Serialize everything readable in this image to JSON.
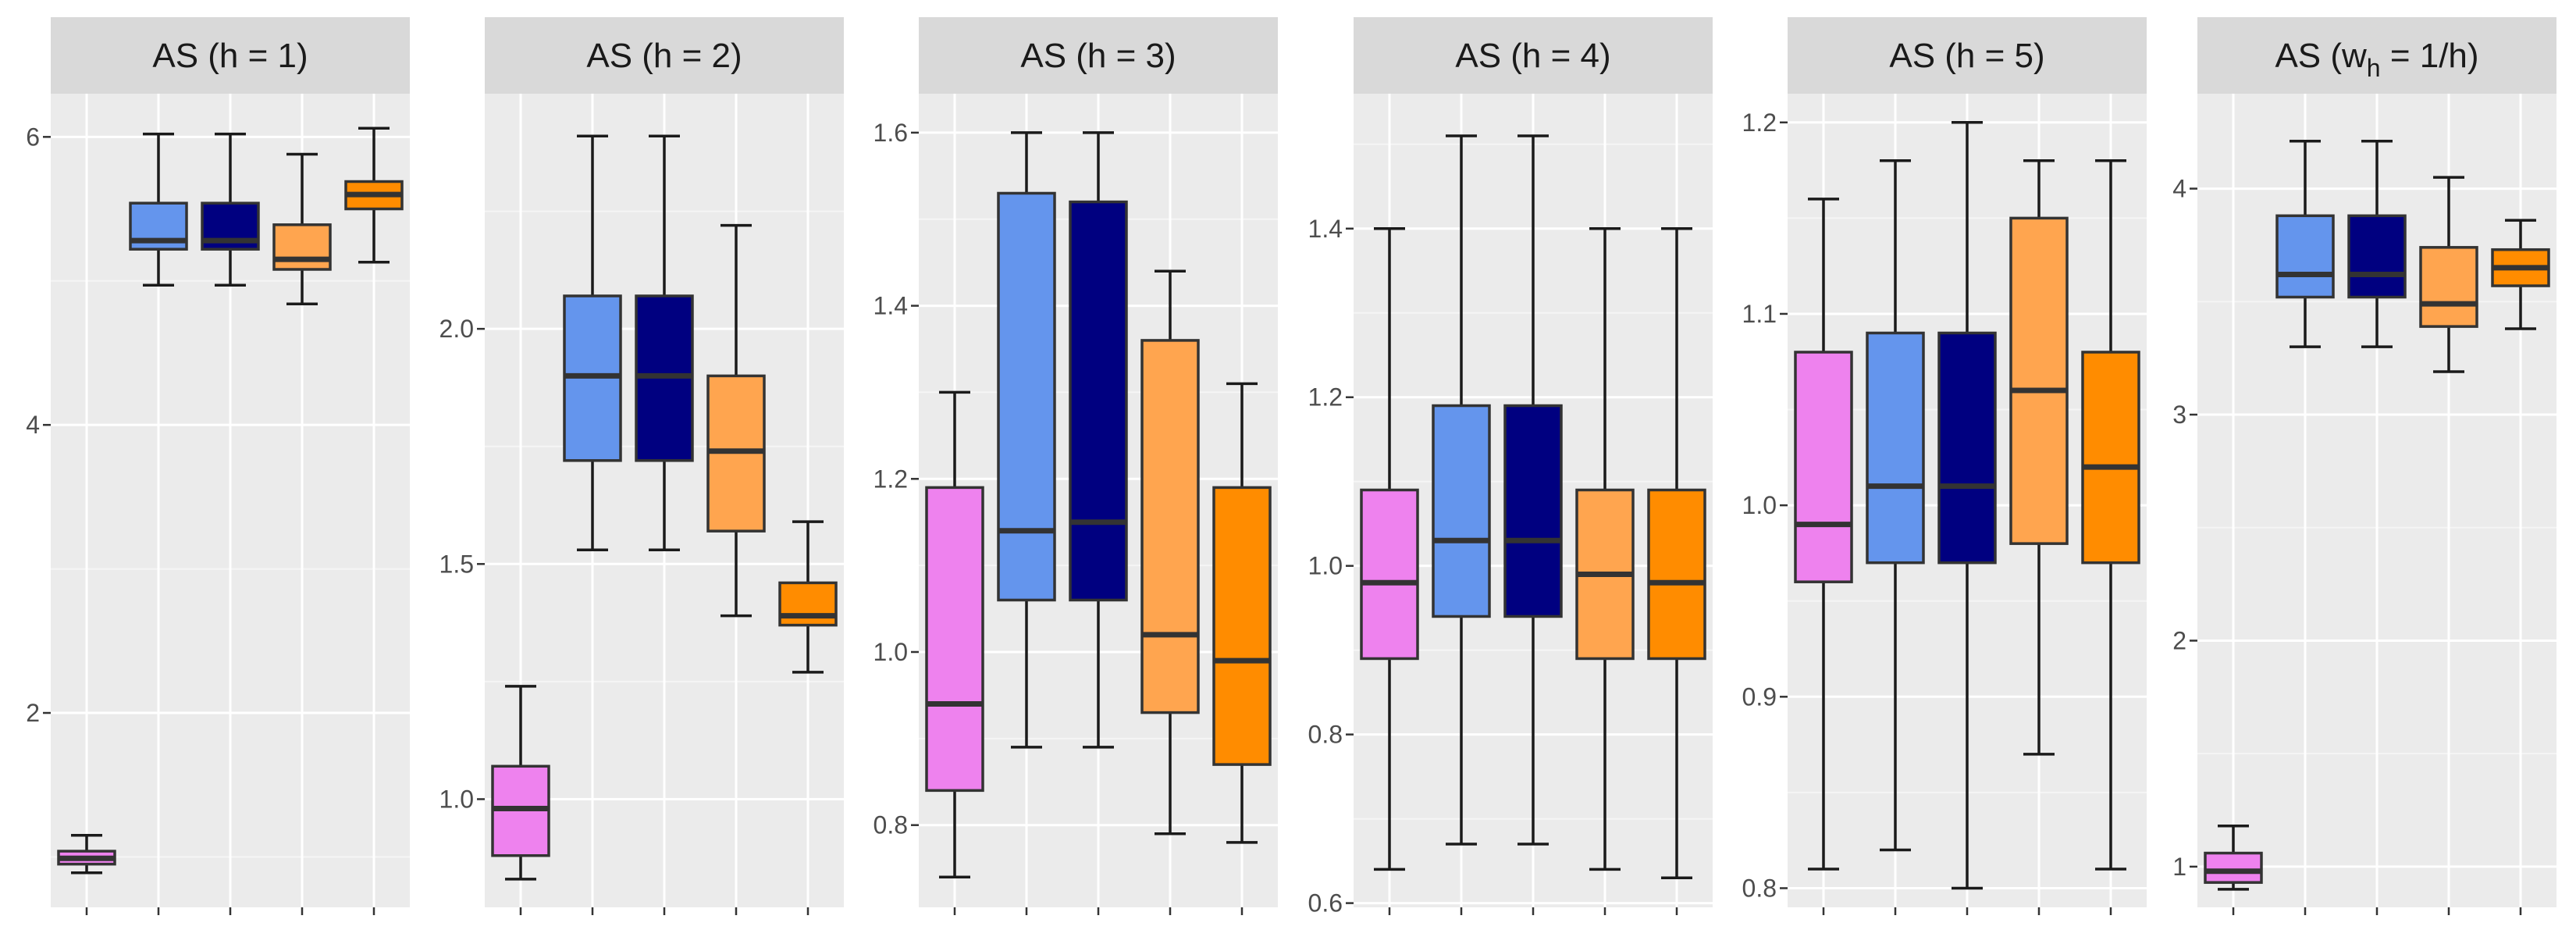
{
  "colors": {
    "panel_bg": "#EBEBEB",
    "strip_bg": "#D9D9D9",
    "grid_major": "#FFFFFF",
    "grid_minor": "#F5F5F5",
    "tick": "#333333",
    "whisker": "#1A1A1A",
    "box_border": "#333333",
    "series": [
      "#EE82EE",
      "#6495ED",
      "#000080",
      "#FFA54F",
      "#FF8C00"
    ]
  },
  "chart_data": [
    {
      "type": "box",
      "title": "AS (h = 1)",
      "ylim": [
        0.65,
        6.3
      ],
      "yticks": [
        2,
        4,
        6
      ],
      "yticklabels": [
        "2",
        "4",
        "6"
      ],
      "boxes": [
        {
          "min": 0.89,
          "q1": 0.95,
          "median": 0.99,
          "q3": 1.04,
          "max": 1.15
        },
        {
          "min": 4.97,
          "q1": 5.22,
          "median": 5.28,
          "q3": 5.54,
          "max": 6.02
        },
        {
          "min": 4.97,
          "q1": 5.22,
          "median": 5.28,
          "q3": 5.54,
          "max": 6.02
        },
        {
          "min": 4.84,
          "q1": 5.08,
          "median": 5.15,
          "q3": 5.39,
          "max": 5.88
        },
        {
          "min": 5.13,
          "q1": 5.5,
          "median": 5.6,
          "q3": 5.69,
          "max": 6.06
        }
      ]
    },
    {
      "type": "box",
      "title": "AS (h = 2)",
      "ylim": [
        0.77,
        2.5
      ],
      "yticks": [
        1.0,
        1.5,
        2.0
      ],
      "yticklabels": [
        "1.0",
        "1.5",
        "2.0"
      ],
      "boxes": [
        {
          "min": 0.83,
          "q1": 0.88,
          "median": 0.98,
          "q3": 1.07,
          "max": 1.24
        },
        {
          "min": 1.53,
          "q1": 1.72,
          "median": 1.9,
          "q3": 2.07,
          "max": 2.41
        },
        {
          "min": 1.53,
          "q1": 1.72,
          "median": 1.9,
          "q3": 2.07,
          "max": 2.41
        },
        {
          "min": 1.39,
          "q1": 1.57,
          "median": 1.74,
          "q3": 1.9,
          "max": 2.22
        },
        {
          "min": 1.27,
          "q1": 1.37,
          "median": 1.39,
          "q3": 1.46,
          "max": 1.59
        }
      ]
    },
    {
      "type": "box",
      "title": "AS (h = 3)",
      "ylim": [
        0.705,
        1.645
      ],
      "yticks": [
        0.8,
        1.0,
        1.2,
        1.4,
        1.6
      ],
      "yticklabels": [
        "0.8",
        "1.0",
        "1.2",
        "1.4",
        "1.6"
      ],
      "boxes": [
        {
          "min": 0.74,
          "q1": 0.84,
          "median": 0.94,
          "q3": 1.19,
          "max": 1.3
        },
        {
          "min": 0.89,
          "q1": 1.06,
          "median": 1.14,
          "q3": 1.53,
          "max": 1.6
        },
        {
          "min": 0.89,
          "q1": 1.06,
          "median": 1.15,
          "q3": 1.52,
          "max": 1.6
        },
        {
          "min": 0.79,
          "q1": 0.93,
          "median": 1.02,
          "q3": 1.36,
          "max": 1.44
        },
        {
          "min": 0.78,
          "q1": 0.87,
          "median": 0.99,
          "q3": 1.19,
          "max": 1.31
        }
      ]
    },
    {
      "type": "box",
      "title": "AS (h = 4)",
      "ylim": [
        0.595,
        1.56
      ],
      "yticks": [
        0.6,
        0.8,
        1.0,
        1.2,
        1.4
      ],
      "yticklabels": [
        "0.6",
        "0.8",
        "1.0",
        "1.2",
        "1.4"
      ],
      "boxes": [
        {
          "min": 0.64,
          "q1": 0.89,
          "median": 0.98,
          "q3": 1.09,
          "max": 1.4
        },
        {
          "min": 0.67,
          "q1": 0.94,
          "median": 1.03,
          "q3": 1.19,
          "max": 1.51
        },
        {
          "min": 0.67,
          "q1": 0.94,
          "median": 1.03,
          "q3": 1.19,
          "max": 1.51
        },
        {
          "min": 0.64,
          "q1": 0.89,
          "median": 0.99,
          "q3": 1.09,
          "max": 1.4
        },
        {
          "min": 0.63,
          "q1": 0.89,
          "median": 0.98,
          "q3": 1.09,
          "max": 1.4
        }
      ]
    },
    {
      "type": "box",
      "title": "AS (h = 5)",
      "ylim": [
        0.79,
        1.215
      ],
      "yticks": [
        0.8,
        0.9,
        1.0,
        1.1,
        1.2
      ],
      "yticklabels": [
        "0.8",
        "0.9",
        "1.0",
        "1.1",
        "1.2"
      ],
      "boxes": [
        {
          "min": 0.81,
          "q1": 0.96,
          "median": 0.99,
          "q3": 1.08,
          "max": 1.16
        },
        {
          "min": 0.82,
          "q1": 0.97,
          "median": 1.01,
          "q3": 1.09,
          "max": 1.18
        },
        {
          "min": 0.8,
          "q1": 0.97,
          "median": 1.01,
          "q3": 1.09,
          "max": 1.2
        },
        {
          "min": 0.87,
          "q1": 0.98,
          "median": 1.06,
          "q3": 1.15,
          "max": 1.18
        },
        {
          "min": 0.81,
          "q1": 0.97,
          "median": 1.02,
          "q3": 1.08,
          "max": 1.18
        }
      ]
    },
    {
      "type": "box",
      "title_main": "AS (w",
      "title_sub": "h",
      "title_rest": " = 1/h)",
      "ylim": [
        0.82,
        4.42
      ],
      "yticks": [
        1,
        2,
        3,
        4
      ],
      "yticklabels": [
        "1",
        "2",
        "3",
        "4"
      ],
      "boxes": [
        {
          "min": 0.9,
          "q1": 0.93,
          "median": 0.98,
          "q3": 1.06,
          "max": 1.18
        },
        {
          "min": 3.3,
          "q1": 3.52,
          "median": 3.62,
          "q3": 3.88,
          "max": 4.21
        },
        {
          "min": 3.3,
          "q1": 3.52,
          "median": 3.62,
          "q3": 3.88,
          "max": 4.21
        },
        {
          "min": 3.19,
          "q1": 3.39,
          "median": 3.49,
          "q3": 3.74,
          "max": 4.05
        },
        {
          "min": 3.38,
          "q1": 3.57,
          "median": 3.65,
          "q3": 3.73,
          "max": 3.86
        }
      ]
    }
  ]
}
